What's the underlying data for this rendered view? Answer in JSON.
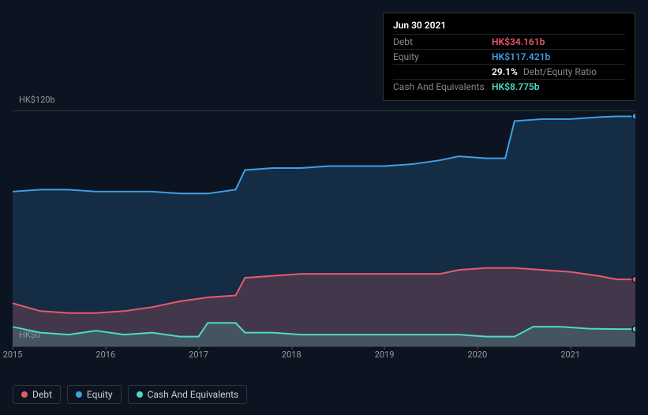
{
  "background_color": "#0d1421",
  "chart": {
    "type": "area",
    "x_years": [
      "2015",
      "2016",
      "2017",
      "2018",
      "2019",
      "2020",
      "2021"
    ],
    "ylim": [
      0,
      120
    ],
    "y_ticks": [
      {
        "value": 120,
        "label": "HK$120b"
      },
      {
        "value": 0,
        "label": "HK$0"
      }
    ],
    "grid_color": "#333333",
    "plot_background": "#0d1421",
    "series": [
      {
        "key": "equity",
        "name": "Equity",
        "color": "#3fa0e6",
        "fill": "rgba(63,160,230,0.18)",
        "line_width": 2,
        "points": [
          {
            "x": 2015.0,
            "y": 79
          },
          {
            "x": 2015.3,
            "y": 80
          },
          {
            "x": 2015.6,
            "y": 80
          },
          {
            "x": 2015.9,
            "y": 79
          },
          {
            "x": 2016.2,
            "y": 79
          },
          {
            "x": 2016.5,
            "y": 79
          },
          {
            "x": 2016.8,
            "y": 78
          },
          {
            "x": 2017.1,
            "y": 78
          },
          {
            "x": 2017.4,
            "y": 80
          },
          {
            "x": 2017.5,
            "y": 90
          },
          {
            "x": 2017.8,
            "y": 91
          },
          {
            "x": 2018.1,
            "y": 91
          },
          {
            "x": 2018.4,
            "y": 92
          },
          {
            "x": 2018.7,
            "y": 92
          },
          {
            "x": 2019.0,
            "y": 92
          },
          {
            "x": 2019.3,
            "y": 93
          },
          {
            "x": 2019.6,
            "y": 95
          },
          {
            "x": 2019.8,
            "y": 97
          },
          {
            "x": 2020.1,
            "y": 96
          },
          {
            "x": 2020.3,
            "y": 96
          },
          {
            "x": 2020.4,
            "y": 115
          },
          {
            "x": 2020.7,
            "y": 116
          },
          {
            "x": 2021.0,
            "y": 116
          },
          {
            "x": 2021.3,
            "y": 117
          },
          {
            "x": 2021.5,
            "y": 117.4
          },
          {
            "x": 2021.7,
            "y": 117.4
          }
        ]
      },
      {
        "key": "debt",
        "name": "Debt",
        "color": "#e85a6b",
        "fill": "rgba(232,90,107,0.22)",
        "line_width": 2,
        "points": [
          {
            "x": 2015.0,
            "y": 22
          },
          {
            "x": 2015.3,
            "y": 18
          },
          {
            "x": 2015.6,
            "y": 17
          },
          {
            "x": 2015.9,
            "y": 17
          },
          {
            "x": 2016.2,
            "y": 18
          },
          {
            "x": 2016.5,
            "y": 20
          },
          {
            "x": 2016.8,
            "y": 23
          },
          {
            "x": 2017.1,
            "y": 25
          },
          {
            "x": 2017.4,
            "y": 26
          },
          {
            "x": 2017.5,
            "y": 35
          },
          {
            "x": 2017.8,
            "y": 36
          },
          {
            "x": 2018.1,
            "y": 37
          },
          {
            "x": 2018.4,
            "y": 37
          },
          {
            "x": 2018.7,
            "y": 37
          },
          {
            "x": 2019.0,
            "y": 37
          },
          {
            "x": 2019.3,
            "y": 37
          },
          {
            "x": 2019.6,
            "y": 37
          },
          {
            "x": 2019.8,
            "y": 39
          },
          {
            "x": 2020.1,
            "y": 40
          },
          {
            "x": 2020.4,
            "y": 40
          },
          {
            "x": 2020.7,
            "y": 39
          },
          {
            "x": 2021.0,
            "y": 38
          },
          {
            "x": 2021.3,
            "y": 36
          },
          {
            "x": 2021.5,
            "y": 34.2
          },
          {
            "x": 2021.7,
            "y": 34.2
          }
        ]
      },
      {
        "key": "cash",
        "name": "Cash And Equivalents",
        "color": "#4fd9c4",
        "fill": "rgba(79,217,196,0.18)",
        "line_width": 2,
        "points": [
          {
            "x": 2015.0,
            "y": 10
          },
          {
            "x": 2015.3,
            "y": 7
          },
          {
            "x": 2015.6,
            "y": 6
          },
          {
            "x": 2015.9,
            "y": 8
          },
          {
            "x": 2016.2,
            "y": 6
          },
          {
            "x": 2016.5,
            "y": 7
          },
          {
            "x": 2016.8,
            "y": 5
          },
          {
            "x": 2017.0,
            "y": 5
          },
          {
            "x": 2017.1,
            "y": 12
          },
          {
            "x": 2017.4,
            "y": 12
          },
          {
            "x": 2017.5,
            "y": 7
          },
          {
            "x": 2017.8,
            "y": 7
          },
          {
            "x": 2018.1,
            "y": 6
          },
          {
            "x": 2018.4,
            "y": 6
          },
          {
            "x": 2018.7,
            "y": 6
          },
          {
            "x": 2019.0,
            "y": 6
          },
          {
            "x": 2019.3,
            "y": 6
          },
          {
            "x": 2019.6,
            "y": 6
          },
          {
            "x": 2019.8,
            "y": 6
          },
          {
            "x": 2020.1,
            "y": 5
          },
          {
            "x": 2020.4,
            "y": 5
          },
          {
            "x": 2020.6,
            "y": 10
          },
          {
            "x": 2020.9,
            "y": 10
          },
          {
            "x": 2021.2,
            "y": 9
          },
          {
            "x": 2021.5,
            "y": 8.8
          },
          {
            "x": 2021.7,
            "y": 8.8
          }
        ]
      }
    ],
    "x_domain": [
      2015.0,
      2021.7
    ]
  },
  "tooltip": {
    "date": "Jun 30 2021",
    "rows": [
      {
        "label": "Debt",
        "value": "HK$34.161b",
        "color": "#e85a6b"
      },
      {
        "label": "Equity",
        "value": "HK$117.421b",
        "color": "#3fa0e6"
      }
    ],
    "ratio_value": "29.1%",
    "ratio_label": "Debt/Equity Ratio",
    "cash_row": {
      "label": "Cash And Equivalents",
      "value": "HK$8.775b",
      "color": "#4fd9c4"
    }
  },
  "legend": [
    {
      "key": "debt",
      "label": "Debt",
      "color": "#e85a6b"
    },
    {
      "key": "equity",
      "label": "Equity",
      "color": "#3fa0e6"
    },
    {
      "key": "cash",
      "label": "Cash And Equivalents",
      "color": "#4fd9c4"
    }
  ]
}
